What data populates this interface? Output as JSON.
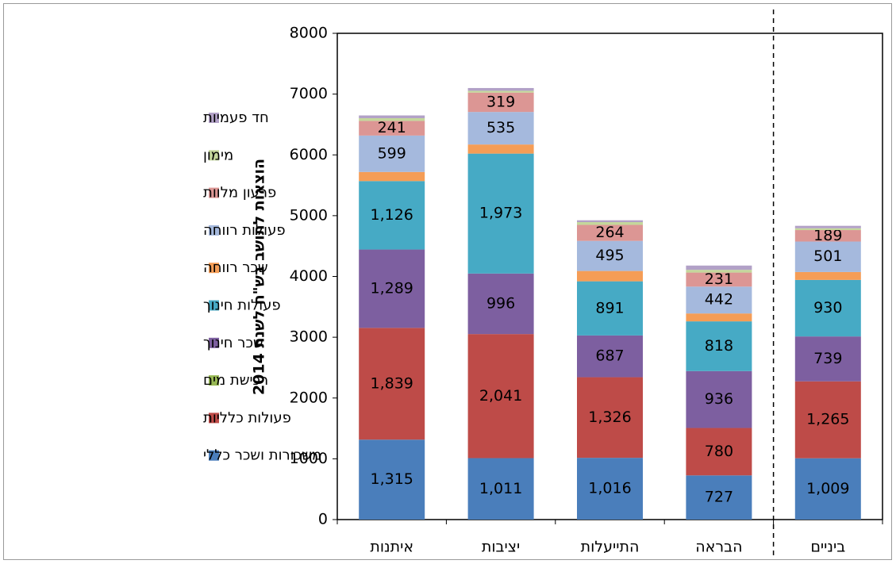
{
  "chart_data": {
    "type": "bar",
    "stacked": true,
    "ylabel": "הוצאות לתושב בש\"ח לשנת 2014",
    "ylim": [
      0,
      8000
    ],
    "yticks": [
      0,
      1000,
      2000,
      3000,
      4000,
      5000,
      6000,
      7000,
      8000
    ],
    "categories": [
      "ביניים",
      "הבראה",
      "התייעלות",
      "יציבות",
      "איתנות"
    ],
    "series": [
      {
        "name": "משכורות ושכר כללי",
        "color": "#4a7ebb",
        "values": [
          1009,
          727,
          1016,
          1011,
          1315
        ],
        "labels": [
          "1,009",
          "727",
          "1,016",
          "1,011",
          "1,315"
        ]
      },
      {
        "name": "פעולות כלליות",
        "color": "#be4b48",
        "values": [
          1265,
          780,
          1326,
          2041,
          1839
        ],
        "labels": [
          "1,265",
          "780",
          "1,326",
          "2,041",
          "1,839"
        ]
      },
      {
        "name": "רכישת מים",
        "color": "#98b954",
        "values": [
          0,
          0,
          0,
          0,
          0
        ],
        "labels": [
          "",
          "",
          "",
          "",
          ""
        ]
      },
      {
        "name": "שכר חינוך",
        "color": "#7d5fa0",
        "values": [
          739,
          936,
          687,
          996,
          1289
        ],
        "labels": [
          "739",
          "936",
          "687",
          "996",
          "1,289"
        ]
      },
      {
        "name": "פעולות חינוך",
        "color": "#46aac5",
        "values": [
          930,
          818,
          891,
          1973,
          1126
        ],
        "labels": [
          "930",
          "818",
          "891",
          "1,973",
          "1,126"
        ]
      },
      {
        "name": "שכר רווחה",
        "color": "#f59d56",
        "values": [
          130,
          130,
          170,
          150,
          150
        ],
        "labels": [
          "",
          "",
          "",
          "",
          ""
        ]
      },
      {
        "name": "פעולות רווחה",
        "color": "#a5b9dd",
        "values": [
          501,
          442,
          495,
          535,
          599
        ],
        "labels": [
          "501",
          "442",
          "495",
          "535",
          "599"
        ]
      },
      {
        "name": "פרעון מלוות",
        "color": "#dc9694",
        "values": [
          189,
          231,
          264,
          319,
          241
        ],
        "labels": [
          "189",
          "231",
          "264",
          "319",
          "241"
        ]
      },
      {
        "name": "מימון",
        "color": "#c4d79b",
        "values": [
          30,
          45,
          45,
          30,
          45
        ],
        "labels": [
          "",
          "",
          "",
          "",
          ""
        ]
      },
      {
        "name": "חד פעמיות",
        "color": "#b2a1c7",
        "values": [
          40,
          70,
          30,
          45,
          45
        ],
        "labels": [
          "",
          "",
          "",
          "",
          ""
        ]
      }
    ],
    "legend": "left",
    "divider_after_category": "ביניים",
    "grid": false
  }
}
